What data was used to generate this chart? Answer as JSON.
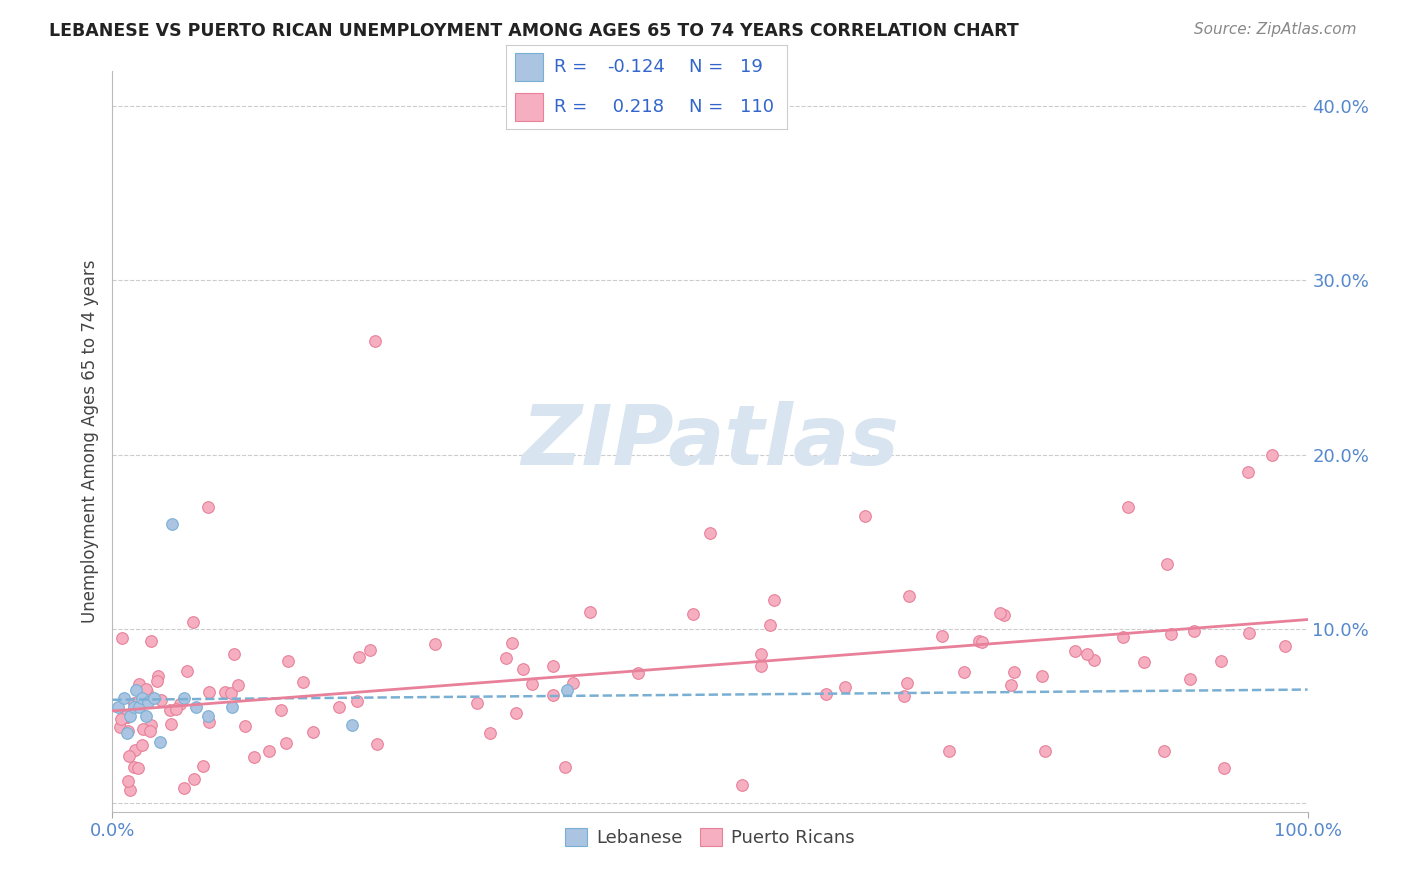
{
  "title": "LEBANESE VS PUERTO RICAN UNEMPLOYMENT AMONG AGES 65 TO 74 YEARS CORRELATION CHART",
  "source": "Source: ZipAtlas.com",
  "ylabel": "Unemployment Among Ages 65 to 74 years",
  "xlim": [
    0,
    1
  ],
  "ylim": [
    -0.005,
    0.42
  ],
  "yticks": [
    0.0,
    0.1,
    0.2,
    0.3,
    0.4
  ],
  "yticklabels": [
    "",
    "10.0%",
    "20.0%",
    "30.0%",
    "40.0%"
  ],
  "lebanese_color": "#aac4e2",
  "lebanese_edge": "#7aafd4",
  "puerto_rican_color": "#f5afc0",
  "puerto_rican_edge": "#e8809a",
  "lebanese_R": -0.124,
  "lebanese_N": 19,
  "puerto_rican_R": 0.218,
  "puerto_rican_N": 110,
  "legend_R_color": "#3366cc",
  "watermark_color": "#d8e4f0",
  "background_color": "#ffffff",
  "grid_color": "#cccccc",
  "tick_color": "#5588cc"
}
